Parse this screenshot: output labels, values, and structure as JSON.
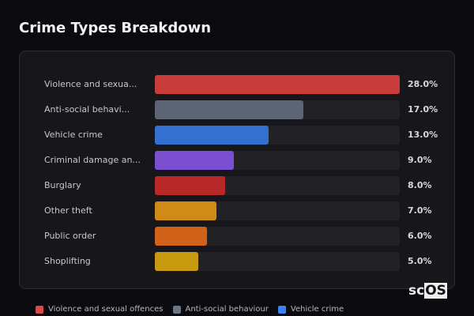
{
  "chart_data": {
    "type": "bar",
    "orientation": "horizontal",
    "title": "Crime Types Breakdown",
    "categories": [
      "Violence and sexua...",
      "Anti-social behavi...",
      "Vehicle crime",
      "Criminal damage an...",
      "Burglary",
      "Other theft",
      "Public order",
      "Shoplifting"
    ],
    "values": [
      28.0,
      17.0,
      13.0,
      9.0,
      8.0,
      7.0,
      6.0,
      5.0
    ],
    "value_labels": [
      "28.0%",
      "17.0%",
      "13.0%",
      "9.0%",
      "8.0%",
      "7.0%",
      "6.0%",
      "5.0%"
    ],
    "colors": [
      "#c83c3c",
      "#5b6574",
      "#3470d0",
      "#7b50d0",
      "#b82828",
      "#d08a18",
      "#d0621a",
      "#c89a10"
    ],
    "xlim": [
      0,
      28
    ],
    "legend": [
      {
        "label": "Violence and sexual offences",
        "color": "#e04848"
      },
      {
        "label": "Anti-social behaviour",
        "color": "#6b7686"
      },
      {
        "label": "Vehicle crime",
        "color": "#3b82f6"
      }
    ],
    "legend_placement": "bottom"
  },
  "logo": {
    "left": "sc",
    "right": "OS"
  }
}
